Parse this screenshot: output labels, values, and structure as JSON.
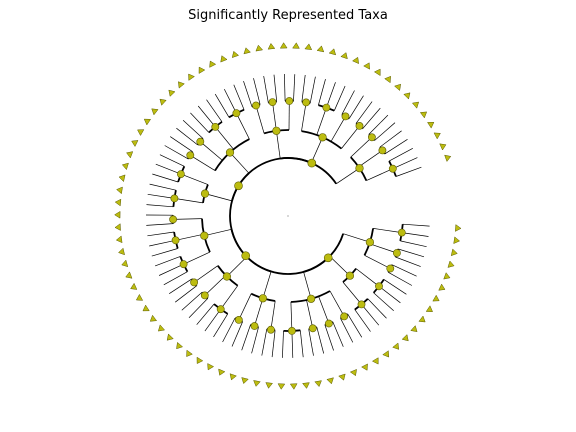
{
  "figure": {
    "title": "Significantly Represented Taxa"
  },
  "style": {
    "node_fill": "#bcbc10",
    "node_stroke": "#5a5a00",
    "edge_color": "#000000",
    "background": "#ffffff"
  },
  "tree": {
    "layout": "circular dendrogram",
    "levels": 5,
    "node_labels_shown": false,
    "clades": [
      {
        "name": "",
        "children": [
          {
            "name": "",
            "children": [
              {
                "leaves": 3
              },
              {
                "leaves": 2
              },
              {
                "leaves": 2
              }
            ]
          },
          {
            "name": "",
            "children": [
              {
                "leaves": 3
              },
              {
                "leaves": 3
              }
            ]
          },
          {
            "name": "",
            "children": [
              {
                "leaves": 2
              },
              {
                "leaves": 2
              },
              {
                "leaves": 2
              },
              {
                "leaves": 3
              }
            ]
          }
        ]
      },
      {
        "name": "",
        "children": [
          {
            "name": "",
            "children": [
              {
                "leaves": 2
              },
              {
                "leaves": 2
              },
              {
                "leaves": 2
              }
            ]
          },
          {
            "name": "",
            "children": [
              {
                "leaves": 3
              },
              {
                "leaves": 2
              },
              {
                "leaves": 2
              }
            ]
          },
          {
            "name": "",
            "children": [
              {
                "leaves": 3
              },
              {
                "leaves": 3
              },
              {
                "leaves": 2
              }
            ]
          }
        ]
      },
      {
        "name": "",
        "children": [
          {
            "name": "",
            "children": [
              {
                "leaves": 3
              },
              {
                "leaves": 3
              }
            ]
          },
          {
            "name": "",
            "children": [
              {
                "leaves": 2
              },
              {
                "leaves": 2
              },
              {
                "leaves": 3
              },
              {
                "leaves": 3
              }
            ]
          }
        ]
      },
      {
        "name": "",
        "children": [
          {
            "name": "",
            "children": [
              {
                "leaves": 2
              },
              {
                "leaves": 2
              },
              {
                "leaves": 2
              }
            ]
          },
          {
            "name": "",
            "children": [
              {
                "leaves": 2
              },
              {
                "leaves": 3
              },
              {
                "leaves": 2
              },
              {
                "leaves": 2
              }
            ]
          },
          {
            "name": "",
            "children": [
              {
                "leaves": 2
              },
              {
                "leaves": 2
              },
              {
                "leaves": 3
              }
            ]
          }
        ]
      }
    ]
  }
}
